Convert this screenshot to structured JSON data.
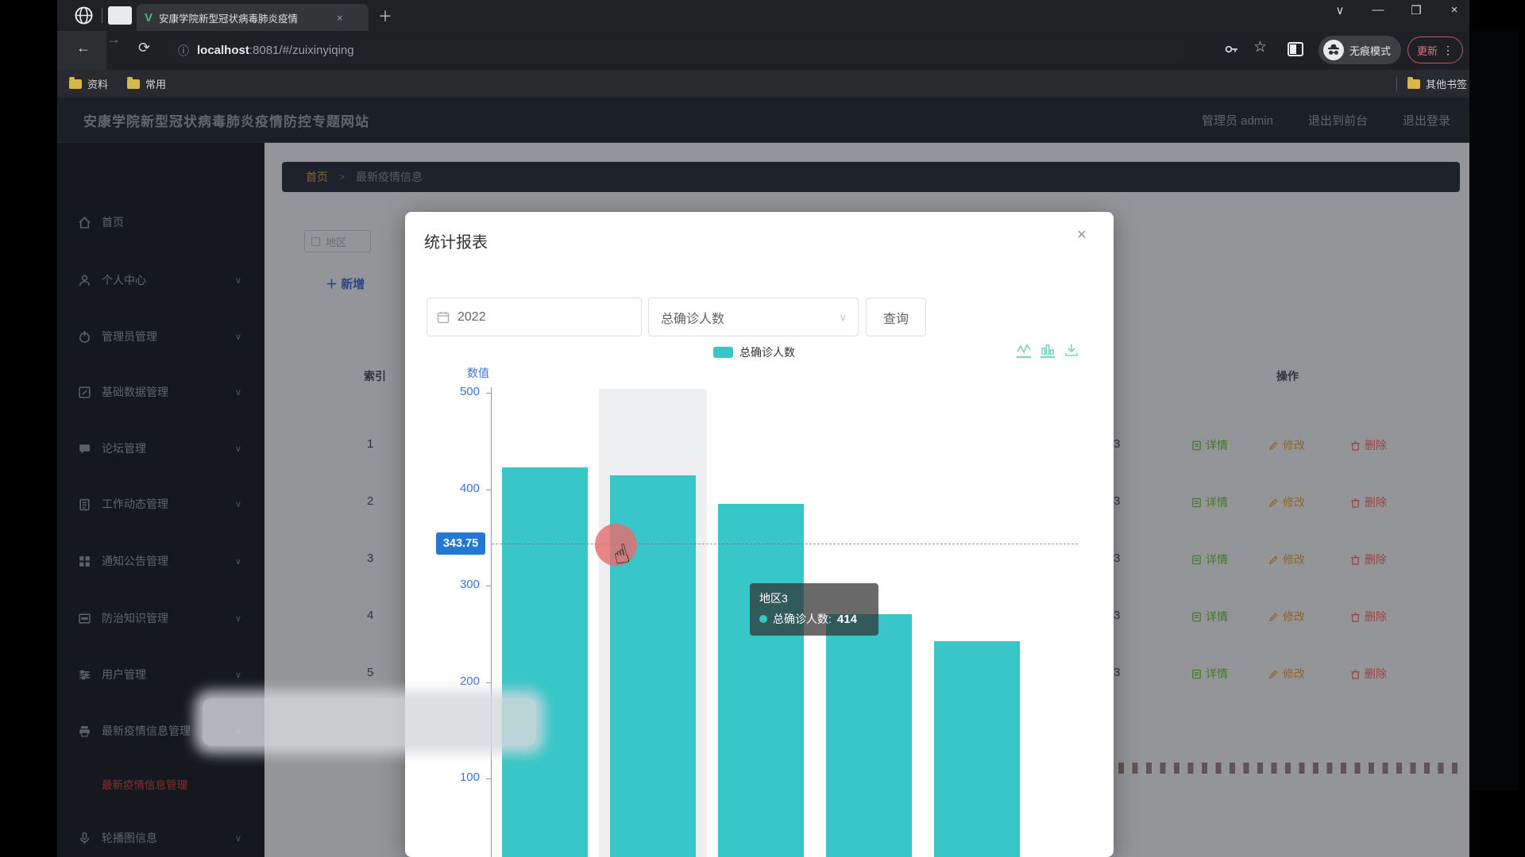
{
  "browser": {
    "tab_title": "安康学院新型冠状病毒肺炎疫情",
    "url_host": "localhost",
    "url_rest": ":8081/#/zuixinyiqing",
    "incognito_label": "无痕模式",
    "update_label": "更新",
    "bookmarks": {
      "b1": "资料",
      "b2": "常用",
      "other": "其他书签"
    }
  },
  "icons": {
    "back": "←",
    "forward": "→",
    "reload": "⟳",
    "info": "ⓘ",
    "star": "☆",
    "menu_dots": "⋮",
    "win_chevron": "∨",
    "win_min": "—",
    "win_restore": "❐",
    "win_close": "×",
    "tab_close": "×",
    "new_tab": "＋",
    "caret_down": "∨",
    "caret_up": "∧",
    "select_caret": "∨",
    "add_plus": "＋",
    "hand_cursor": "☝",
    "modal_close": "×",
    "breadcrumb_sep": ">"
  },
  "page": {
    "title": "安康学院新型冠状病毒肺炎疫情防控专题网站",
    "admin": "管理员 admin",
    "logout_front": "退出到前台",
    "logout": "退出登录"
  },
  "sidebar": {
    "items": [
      {
        "label": "首页"
      },
      {
        "label": "个人中心"
      },
      {
        "label": "管理员管理"
      },
      {
        "label": "基础数据管理"
      },
      {
        "label": "论坛管理"
      },
      {
        "label": "工作动态管理"
      },
      {
        "label": "通知公告管理"
      },
      {
        "label": "防治知识管理"
      },
      {
        "label": "用户管理"
      },
      {
        "label": "最新疫情信息管理"
      },
      {
        "label": "轮播图信息"
      }
    ],
    "active_submenu": "最新疫情信息管理"
  },
  "content": {
    "breadcrumb": {
      "home": "首页",
      "current": "最新疫情信息"
    },
    "filter_label": "地区",
    "add_button": "新增",
    "table": {
      "index_header": "索引",
      "actions_header": "操作",
      "action_detail": "详情",
      "action_edit": "修改",
      "action_delete": "删除",
      "rows": [
        {
          "index": "1",
          "fragment": "3"
        },
        {
          "index": "2",
          "fragment": "3"
        },
        {
          "index": "3",
          "fragment": "3"
        },
        {
          "index": "4",
          "fragment": "3"
        },
        {
          "index": "5",
          "fragment": "3"
        }
      ]
    }
  },
  "modal": {
    "title": "统计报表",
    "year_value": "2022",
    "metric_value": "总确诊人数",
    "query_label": "查询",
    "legend_label": "总确诊人数"
  },
  "chart_data": {
    "type": "bar",
    "title": "统计报表",
    "ylabel": "数值",
    "xlabel": "",
    "ylim": [
      0,
      500
    ],
    "yticks": [
      500,
      400,
      300,
      200,
      100
    ],
    "grid": false,
    "legend_position": "top",
    "legend": [
      "总确诊人数"
    ],
    "categories": [
      "",
      "地区3",
      "",
      "",
      ""
    ],
    "series": [
      {
        "name": "总确诊人数",
        "values": [
          423,
          414,
          385,
          270,
          242
        ]
      }
    ],
    "hover_index": 1,
    "axis_pointer": "343.75",
    "tooltip": {
      "title": "地区3",
      "series": "总确诊人数",
      "value": "414"
    },
    "bar_color": "#38c6c8"
  }
}
